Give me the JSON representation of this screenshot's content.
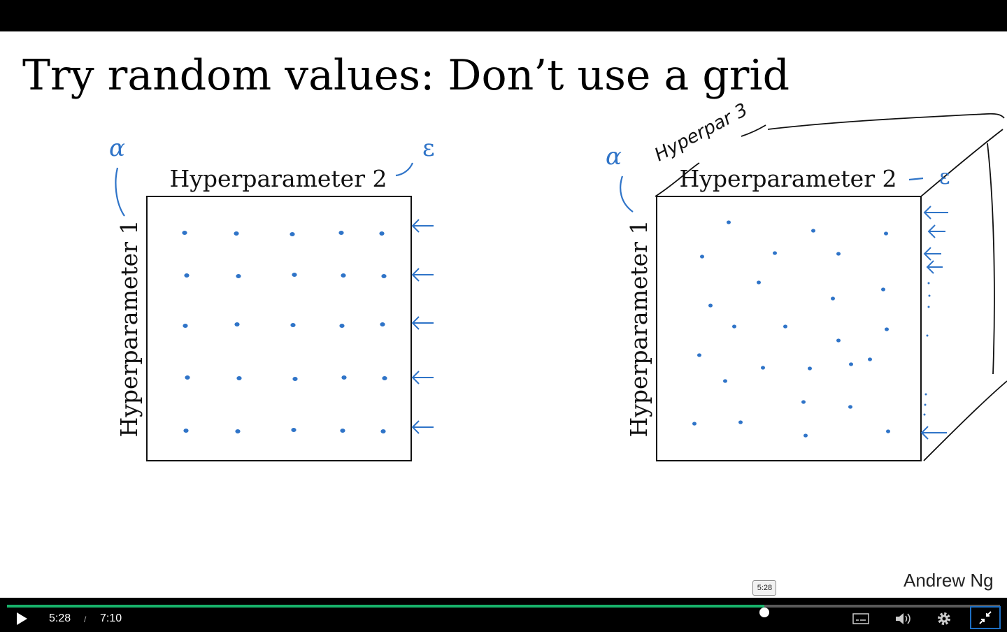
{
  "slide": {
    "title": "Try random values: Don’t use a grid",
    "author": "Andrew Ng",
    "left_panel": {
      "top_label": "Hyperparameter 2",
      "side_label": "Hyperparameter 1",
      "annotation_side": "α",
      "annotation_top": "ε"
    },
    "right_panel": {
      "top_label": "Hyperparameter 2",
      "side_label": "Hyperparameter 1",
      "annotation_side": "α",
      "annotation_top": "ε",
      "annotation_depth": "Hyperpar 3"
    },
    "ink_color": "#2f74c8"
  },
  "player": {
    "current_time": "5:28",
    "separator": "/",
    "duration": "7:10",
    "tooltip_time": "5:28",
    "progress_fraction": 0.763,
    "progress_color": "#17b26a",
    "icons": [
      "play-icon",
      "captions-icon",
      "volume-icon",
      "settings-gear-icon",
      "exit-fullscreen-icon"
    ]
  }
}
